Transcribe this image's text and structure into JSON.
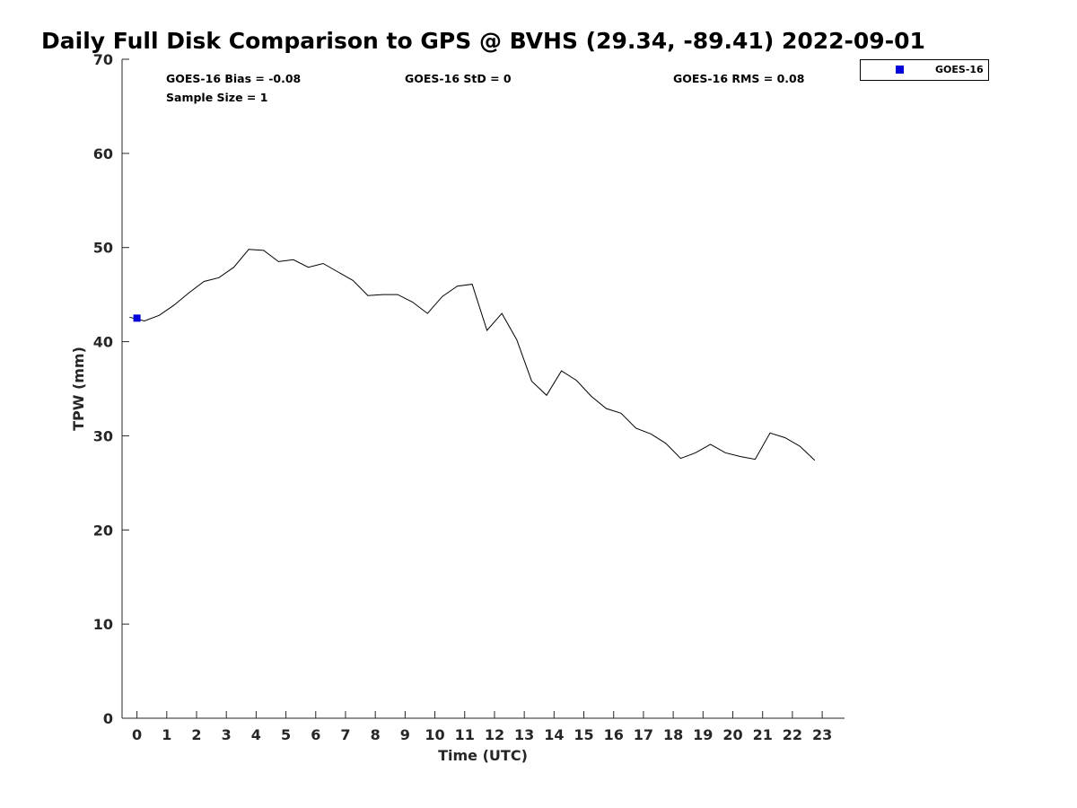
{
  "chart_data": {
    "type": "line",
    "title": "Daily Full Disk Comparison to GPS @ BVHS (29.34, -89.41) 2022-09-01",
    "xlabel": "Time (UTC)",
    "ylabel": "TPW (mm)",
    "xlim": [
      -0.5,
      23.75
    ],
    "ylim": [
      0,
      70
    ],
    "x_ticks": [
      0,
      1,
      2,
      3,
      4,
      5,
      6,
      7,
      8,
      9,
      10,
      11,
      12,
      13,
      14,
      15,
      16,
      17,
      18,
      19,
      20,
      21,
      22,
      23
    ],
    "y_ticks": [
      0,
      10,
      20,
      30,
      40,
      50,
      60,
      70
    ],
    "grid": false,
    "legend_position": "top-right, outside plot",
    "series": [
      {
        "kind": "line",
        "color": "#000000",
        "x": [
          -0.25,
          0.25,
          0.75,
          1.25,
          1.75,
          2.25,
          2.75,
          3.25,
          3.75,
          4.25,
          4.75,
          5.25,
          5.75,
          6.25,
          6.75,
          7.25,
          7.75,
          8.25,
          8.75,
          9.25,
          9.75,
          10.25,
          10.75,
          11.25,
          11.75,
          12.25,
          12.75,
          13.25,
          13.75,
          14.25,
          14.75,
          15.25,
          15.75,
          16.25,
          16.75,
          17.25,
          17.75,
          18.25,
          18.75,
          19.25,
          19.75,
          20.25,
          20.75,
          21.25,
          21.75,
          22.25,
          22.75
        ],
        "y": [
          42.6,
          42.2,
          42.8,
          43.9,
          45.2,
          46.4,
          46.8,
          47.9,
          49.8,
          49.7,
          48.5,
          48.7,
          47.9,
          48.3,
          47.4,
          46.5,
          44.9,
          45.0,
          45.0,
          44.2,
          43.0,
          44.8,
          45.9,
          46.1,
          41.2,
          43.0,
          40.2,
          35.8,
          34.3,
          36.9,
          35.9,
          34.2,
          32.9,
          32.4,
          30.8,
          30.2,
          29.2,
          27.6,
          28.2,
          29.1,
          28.2,
          27.8,
          27.5,
          30.3,
          29.8,
          28.9,
          27.4
        ]
      },
      {
        "name": "GOES-16",
        "kind": "marker",
        "color": "#0000dd",
        "x": [
          0
        ],
        "y": [
          42.5
        ]
      }
    ],
    "annotations": [
      {
        "text": "GOES-16 Bias = -0.08"
      },
      {
        "text": "GOES-16 StD = 0"
      },
      {
        "text": "GOES-16 RMS = 0.08"
      },
      {
        "text": "Sample Size = 1"
      }
    ]
  }
}
